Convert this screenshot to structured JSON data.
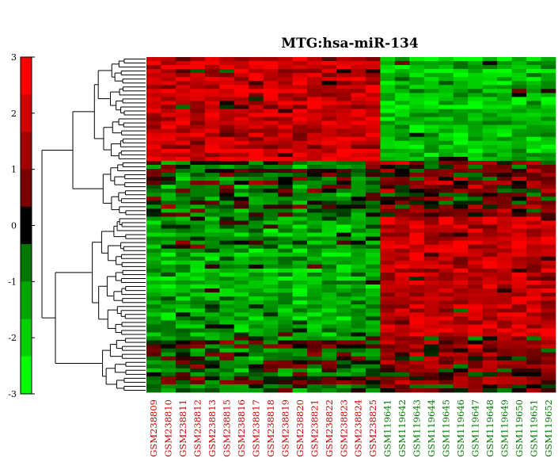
{
  "chart_data": {
    "type": "heatmap",
    "title": "MTG:hsa-miR-134",
    "colorbar": {
      "min": -3,
      "max": 3,
      "ticks": [
        3,
        2,
        1,
        0,
        -1,
        -2,
        -3
      ],
      "colors": [
        "#00ff00",
        "#00d200",
        "#00a500",
        "#007800",
        "#000000",
        "#780000",
        "#a50000",
        "#d20000",
        "#ff0000"
      ]
    },
    "columns": [
      {
        "label": "GSM238809",
        "group_color": "#cc0000"
      },
      {
        "label": "GSM238810",
        "group_color": "#cc0000"
      },
      {
        "label": "GSM238811",
        "group_color": "#cc0000"
      },
      {
        "label": "GSM238812",
        "group_color": "#cc0000"
      },
      {
        "label": "GSM238813",
        "group_color": "#cc0000"
      },
      {
        "label": "GSM238815",
        "group_color": "#cc0000"
      },
      {
        "label": "GSM238816",
        "group_color": "#cc0000"
      },
      {
        "label": "GSM238817",
        "group_color": "#cc0000"
      },
      {
        "label": "GSM238818",
        "group_color": "#cc0000"
      },
      {
        "label": "GSM238819",
        "group_color": "#cc0000"
      },
      {
        "label": "GSM238820",
        "group_color": "#cc0000"
      },
      {
        "label": "GSM238821",
        "group_color": "#cc0000"
      },
      {
        "label": "GSM238822",
        "group_color": "#cc0000"
      },
      {
        "label": "GSM238823",
        "group_color": "#cc0000"
      },
      {
        "label": "GSM238824",
        "group_color": "#cc0000"
      },
      {
        "label": "GSM238825",
        "group_color": "#cc0000"
      },
      {
        "label": "GSM119641",
        "group_color": "#007700"
      },
      {
        "label": "GSM119642",
        "group_color": "#007700"
      },
      {
        "label": "GSM119643",
        "group_color": "#007700"
      },
      {
        "label": "GSM119644",
        "group_color": "#007700"
      },
      {
        "label": "GSM119645",
        "group_color": "#007700"
      },
      {
        "label": "GSM119646",
        "group_color": "#007700"
      },
      {
        "label": "GSM119647",
        "group_color": "#007700"
      },
      {
        "label": "GSM119648",
        "group_color": "#007700"
      },
      {
        "label": "GSM119649",
        "group_color": "#007700"
      },
      {
        "label": "GSM119650",
        "group_color": "#007700"
      },
      {
        "label": "GSM119651",
        "group_color": "#007700"
      },
      {
        "label": "GSM119652",
        "group_color": "#007700"
      }
    ],
    "row_count": 84,
    "row_blocks": [
      {
        "rows": 26,
        "group_a_level": 1.9,
        "group_b_level": -1.9
      },
      {
        "rows": 14,
        "group_a_level": -0.4,
        "group_b_level": 0.6
      },
      {
        "rows": 30,
        "group_a_level": -1.4,
        "group_b_level": 1.9
      },
      {
        "rows": 14,
        "group_a_level": -0.3,
        "group_b_level": 0.8
      }
    ],
    "values": [],
    "dendrogram_clusters": [
      26,
      14,
      30,
      14
    ]
  }
}
